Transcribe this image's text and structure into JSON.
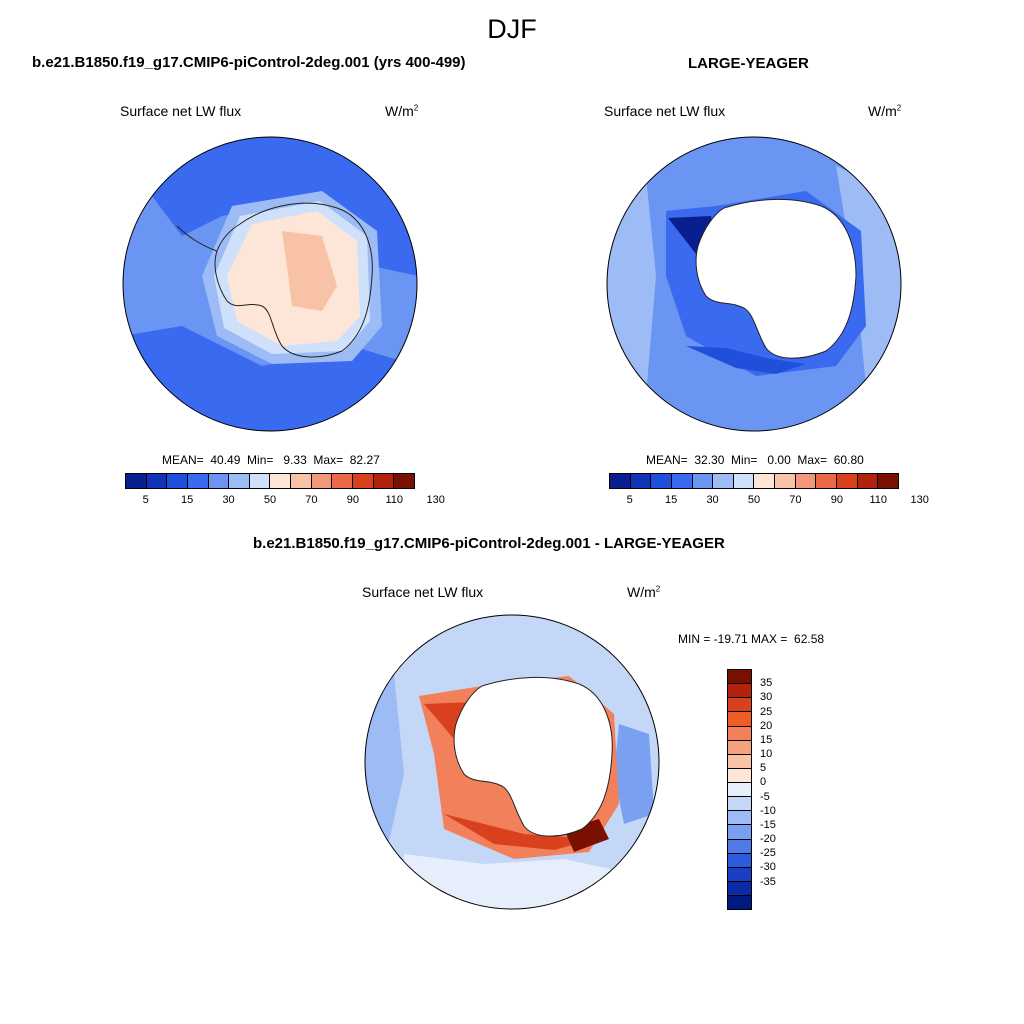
{
  "season": "DJF",
  "panels": {
    "case": {
      "title": "b.e21.B1850.f19_g17.CMIP6-piControl-2deg.001 (yrs 400-499)",
      "variable": "Surface net LW flux",
      "units_base": "W/m",
      "units_exp": "2",
      "stats": "MEAN=  40.49  Min=   9.33  Max=  82.27"
    },
    "obs": {
      "title": "LARGE-YEAGER",
      "variable": "Surface net LW flux",
      "units_base": "W/m",
      "units_exp": "2",
      "stats": "MEAN=  32.30  Min=   0.00  Max=  60.80"
    },
    "diff": {
      "title": "b.e21.B1850.f19_g17.CMIP6-piControl-2deg.001 - LARGE-YEAGER",
      "variable": "Surface net LW flux",
      "units_base": "W/m",
      "units_exp": "2",
      "minmax": "MIN = -19.71 MAX =  62.58"
    }
  },
  "colors": {
    "abs": [
      "#0a1f8f",
      "#1133b8",
      "#1f4fdb",
      "#3a6af0",
      "#6a95f2",
      "#9dbbf5",
      "#cfe0fa",
      "#fde6d8",
      "#f8c2a6",
      "#f2977a",
      "#e96a45",
      "#d9401d",
      "#b3220d",
      "#7a1000"
    ],
    "diff": [
      "#7a1000",
      "#b3220d",
      "#d9401d",
      "#f05c28",
      "#f2805a",
      "#f5a07e",
      "#f8c2a6",
      "#fde6d8",
      "#e6eefb",
      "#c5d7f7",
      "#9dbbf5",
      "#7aa0f2",
      "#4f7ae8",
      "#2d5be0",
      "#1a3ec4",
      "#0a2aa8",
      "#001a80"
    ]
  },
  "chart_data": [
    {
      "type": "heatmap",
      "projection": "south-polar-stereographic",
      "title": "b.e21.B1850.f19_g17.CMIP6-piControl-2deg.001 (yrs 400-499)",
      "variable": "Surface net LW flux",
      "units": "W/m2",
      "mean": 40.49,
      "min": 9.33,
      "max": 82.27,
      "colorbar_labels": [
        "5",
        "15",
        "30",
        "50",
        "70",
        "90",
        "110",
        "130"
      ]
    },
    {
      "type": "heatmap",
      "projection": "south-polar-stereographic",
      "title": "LARGE-YEAGER",
      "variable": "Surface net LW flux",
      "units": "W/m2",
      "mean": 32.3,
      "min": 0.0,
      "max": 60.8,
      "colorbar_labels": [
        "5",
        "15",
        "30",
        "50",
        "70",
        "90",
        "110",
        "130"
      ]
    },
    {
      "type": "heatmap",
      "projection": "south-polar-stereographic",
      "title": "b.e21.B1850.f19_g17.CMIP6-piControl-2deg.001 - LARGE-YEAGER",
      "variable": "Surface net LW flux",
      "units": "W/m2",
      "min": -19.71,
      "max": 62.58,
      "colorbar_labels": [
        "35",
        "30",
        "25",
        "20",
        "15",
        "10",
        "5",
        "0",
        "-5",
        "-10",
        "-15",
        "-20",
        "-25",
        "-30",
        "-35"
      ]
    }
  ]
}
